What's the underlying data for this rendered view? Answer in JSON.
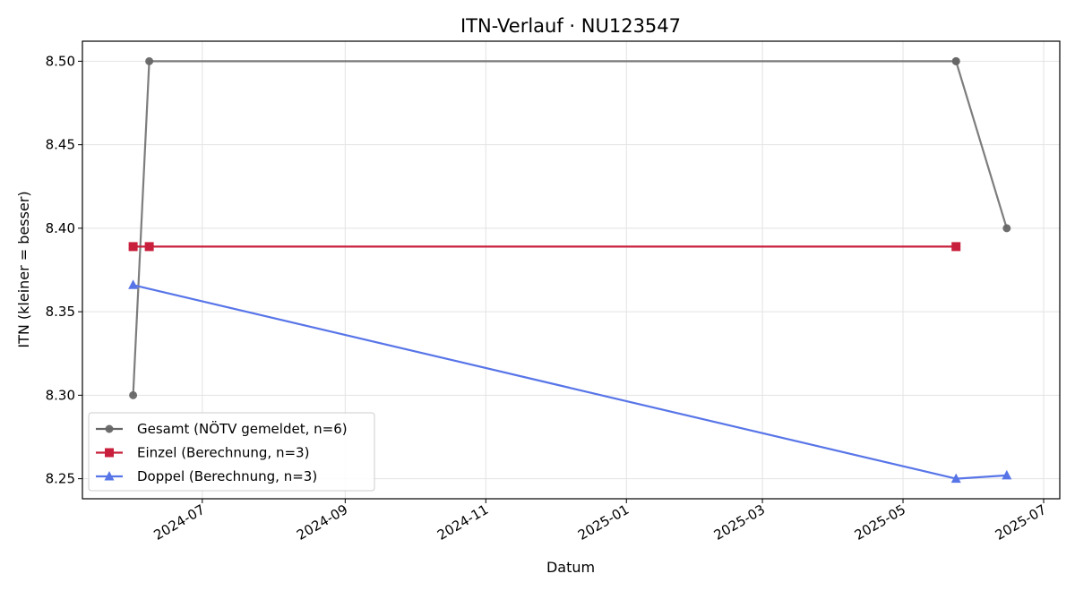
{
  "chart_data": {
    "type": "line",
    "title": "ITN-Verlauf · NU123547",
    "xlabel": "Datum",
    "ylabel": "ITN  (kleiner = besser)",
    "x_type": "date",
    "xlim": [
      "2024-05-10",
      "2025-07-08"
    ],
    "ylim": [
      8.238,
      8.512
    ],
    "x_ticks": [
      "2024-07",
      "2024-09",
      "2024-11",
      "2025-01",
      "2025-03",
      "2025-05",
      "2025-07"
    ],
    "y_ticks": [
      "8.25",
      "8.30",
      "8.35",
      "8.40",
      "8.45",
      "8.50"
    ],
    "grid": true,
    "legend_position": "lower-left",
    "series": [
      {
        "name": "Gesamt (NÖTV gemeldet, n=6)",
        "color": "#666666",
        "marker": "circle",
        "x": [
          "2024-06-01",
          "2024-06-08",
          "2025-05-24",
          "2025-05-24",
          "2025-06-15"
        ],
        "y": [
          8.3,
          8.5,
          8.5,
          8.5,
          8.4
        ]
      },
      {
        "name": "Einzel (Berechnung, n=3)",
        "color": "#c8203c",
        "marker": "square",
        "x": [
          "2024-06-01",
          "2024-06-08",
          "2025-05-24"
        ],
        "y": [
          8.389,
          8.389,
          8.389
        ]
      },
      {
        "name": "Doppel (Berechnung, n=3)",
        "color": "#5875e8",
        "marker": "triangle",
        "x": [
          "2024-06-01",
          "2025-05-24",
          "2025-06-15"
        ],
        "y": [
          8.366,
          8.25,
          8.252
        ]
      }
    ]
  }
}
